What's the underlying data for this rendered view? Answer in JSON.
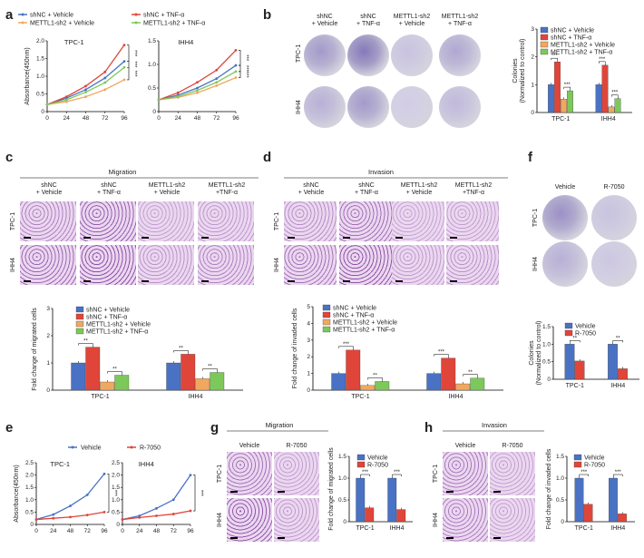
{
  "panels": {
    "a": "a",
    "b": "b",
    "c": "c",
    "d": "d",
    "e": "e",
    "f": "f",
    "g": "g",
    "h": "h"
  },
  "colors": {
    "blue": "#4a72c4",
    "red": "#e0453a",
    "orange": "#f0a860",
    "green": "#7cc85a",
    "purple": "#6a4fa3"
  },
  "legend_a": [
    "shNC + Vehicle",
    "shNC + TNF-α",
    "METTL1-sh2 + Vehicle",
    "METTL1-sh2 + TNF-α"
  ],
  "legend_bar4": [
    "shNC + Vehicle",
    "shNC + TNF-α",
    "METTL1-sh2 + Vehicle",
    "METTL1-sh2 + TNF-α"
  ],
  "legend_bar2": [
    "Vehicle",
    "R-7050"
  ],
  "cond4": [
    "shNC\n+ Vehicle",
    "shNC\n+ TNF-α",
    "METTL1-sh2\n+ Vehicle",
    "METTL1-sh2\n+ TNF-α"
  ],
  "cond4_c": [
    "shNC\n+ Vehicle",
    "shNC\n+ TNF-α",
    "METTL1-sh2\n+ Vehicle",
    "METTL1-sh2\n+TNF-α"
  ],
  "cond2": [
    "Vehicle",
    "R-7050"
  ],
  "cells": [
    "TPC-1",
    "IHH4"
  ],
  "titles": {
    "migration": "Migration",
    "invasion": "Invasion"
  },
  "stars": {
    "s3": "***",
    "s2": "**"
  },
  "chart_data": [
    {
      "id": "a-TPC1",
      "type": "line",
      "title": "TPC-1",
      "xlabel": "Time(hours)",
      "ylabel": "Absorbance(450nm)",
      "x": [
        0,
        24,
        48,
        72,
        96
      ],
      "xlim": [
        0,
        96
      ],
      "ylim": [
        0,
        2.0
      ],
      "yticks": [
        0,
        0.5,
        1.0,
        1.5,
        2.0
      ],
      "series": [
        {
          "name": "shNC + Vehicle",
          "values": [
            0.2,
            0.38,
            0.62,
            0.95,
            1.42
          ]
        },
        {
          "name": "shNC + TNF-α",
          "values": [
            0.2,
            0.42,
            0.72,
            1.12,
            1.88
          ]
        },
        {
          "name": "METTL1-sh2 + Vehicle",
          "values": [
            0.2,
            0.28,
            0.42,
            0.62,
            0.9
          ]
        },
        {
          "name": "METTL1-sh2 + TNF-α",
          "values": [
            0.2,
            0.33,
            0.55,
            0.82,
            1.25
          ]
        }
      ]
    },
    {
      "id": "a-IHH4",
      "type": "line",
      "title": "IHH4",
      "xlabel": "Time(hours)",
      "x": [
        0,
        24,
        48,
        72,
        96
      ],
      "xlim": [
        0,
        96
      ],
      "ylim": [
        0,
        1.5
      ],
      "yticks": [
        0,
        0.5,
        1.0,
        1.5
      ],
      "series": [
        {
          "name": "shNC + Vehicle",
          "values": [
            0.25,
            0.35,
            0.5,
            0.7,
            0.98
          ]
        },
        {
          "name": "shNC + TNF-α",
          "values": [
            0.25,
            0.4,
            0.62,
            0.88,
            1.3
          ]
        },
        {
          "name": "METTL1-sh2 + Vehicle",
          "values": [
            0.25,
            0.3,
            0.4,
            0.55,
            0.72
          ]
        },
        {
          "name": "METTL1-sh2 + TNF-α",
          "values": [
            0.25,
            0.32,
            0.45,
            0.62,
            0.85
          ]
        }
      ]
    },
    {
      "id": "b",
      "type": "bar",
      "ylabel": "Colonies\n(Normalized to control)",
      "categories": [
        "TPC-1",
        "IHH4"
      ],
      "ylim": [
        0,
        3
      ],
      "yticks": [
        0,
        1,
        2,
        3
      ],
      "series": [
        {
          "name": "shNC + Vehicle",
          "values": [
            1.0,
            1.0
          ]
        },
        {
          "name": "shNC + TNF-α",
          "values": [
            1.82,
            1.7
          ]
        },
        {
          "name": "METTL1-sh2 + Vehicle",
          "values": [
            0.48,
            0.2
          ]
        },
        {
          "name": "METTL1-sh2 + TNF-α",
          "values": [
            0.78,
            0.5
          ]
        }
      ]
    },
    {
      "id": "c",
      "type": "bar",
      "ylabel": "Fold change of migrated cells",
      "categories": [
        "TPC-1",
        "IHH4"
      ],
      "ylim": [
        0,
        3
      ],
      "yticks": [
        0,
        1,
        2,
        3
      ],
      "series": [
        {
          "name": "shNC + Vehicle",
          "values": [
            1.0,
            1.0
          ]
        },
        {
          "name": "shNC + TNF-α",
          "values": [
            1.58,
            1.32
          ]
        },
        {
          "name": "METTL1-sh2 + Vehicle",
          "values": [
            0.3,
            0.42
          ]
        },
        {
          "name": "METTL1-sh2 + TNF-α",
          "values": [
            0.55,
            0.65
          ]
        }
      ]
    },
    {
      "id": "d",
      "type": "bar",
      "ylabel": "Fold change of invaded cells",
      "categories": [
        "TPC-1",
        "IHH4"
      ],
      "ylim": [
        0,
        5
      ],
      "yticks": [
        0,
        1,
        2,
        3,
        4,
        5
      ],
      "series": [
        {
          "name": "shNC + Vehicle",
          "values": [
            1.0,
            1.0
          ]
        },
        {
          "name": "shNC + TNF-α",
          "values": [
            2.4,
            1.92
          ]
        },
        {
          "name": "METTL1-sh2 + Vehicle",
          "values": [
            0.28,
            0.38
          ]
        },
        {
          "name": "METTL1-sh2 + TNF-α",
          "values": [
            0.52,
            0.72
          ]
        }
      ]
    },
    {
      "id": "f",
      "type": "bar",
      "ylabel": "Colonies\n(Normalized to control)",
      "categories": [
        "TPC-1",
        "IHH4"
      ],
      "ylim": [
        0,
        1.5
      ],
      "yticks": [
        0,
        0.5,
        1.0,
        1.5
      ],
      "series": [
        {
          "name": "Vehicle",
          "values": [
            1.0,
            1.0
          ]
        },
        {
          "name": "R-7050",
          "values": [
            0.52,
            0.3
          ]
        }
      ]
    },
    {
      "id": "e-TPC1",
      "type": "line",
      "title": "TPC-1",
      "xlabel": "Time(hours)",
      "ylabel": "Absorbance(450nm)",
      "x": [
        0,
        24,
        48,
        72,
        96
      ],
      "xlim": [
        0,
        96
      ],
      "ylim": [
        0,
        2.5
      ],
      "yticks": [
        0,
        0.5,
        1.0,
        1.5,
        2.0,
        2.5
      ],
      "series": [
        {
          "name": "Vehicle",
          "values": [
            0.2,
            0.4,
            0.75,
            1.2,
            2.05
          ]
        },
        {
          "name": "R-7050",
          "values": [
            0.2,
            0.25,
            0.3,
            0.38,
            0.5
          ]
        }
      ]
    },
    {
      "id": "e-IHH4",
      "type": "line",
      "title": "IHH4",
      "xlabel": "Time(hours)",
      "x": [
        0,
        24,
        48,
        72,
        96
      ],
      "xlim": [
        0,
        96
      ],
      "ylim": [
        0,
        2.5
      ],
      "yticks": [
        0,
        0.5,
        1.0,
        1.5,
        2.0,
        2.5
      ],
      "series": [
        {
          "name": "Vehicle",
          "values": [
            0.2,
            0.35,
            0.65,
            1.0,
            2.0
          ]
        },
        {
          "name": "R-7050",
          "values": [
            0.2,
            0.28,
            0.35,
            0.42,
            0.55
          ]
        }
      ]
    },
    {
      "id": "g",
      "type": "bar",
      "ylabel": "Fold change of migrated cells",
      "categories": [
        "TPC-1",
        "IHH4"
      ],
      "ylim": [
        0,
        1.5
      ],
      "yticks": [
        0,
        0.5,
        1.0,
        1.5
      ],
      "series": [
        {
          "name": "Vehicle",
          "values": [
            1.0,
            1.0
          ]
        },
        {
          "name": "R-7050",
          "values": [
            0.32,
            0.28
          ]
        }
      ]
    },
    {
      "id": "h",
      "type": "bar",
      "ylabel": "Fold change of invaded cells",
      "categories": [
        "TPC-1",
        "IHH4"
      ],
      "ylim": [
        0,
        1.5
      ],
      "yticks": [
        0,
        0.5,
        1.0,
        1.5
      ],
      "series": [
        {
          "name": "Vehicle",
          "values": [
            1.0,
            1.0
          ]
        },
        {
          "name": "R-7050",
          "values": [
            0.4,
            0.18
          ]
        }
      ]
    }
  ]
}
